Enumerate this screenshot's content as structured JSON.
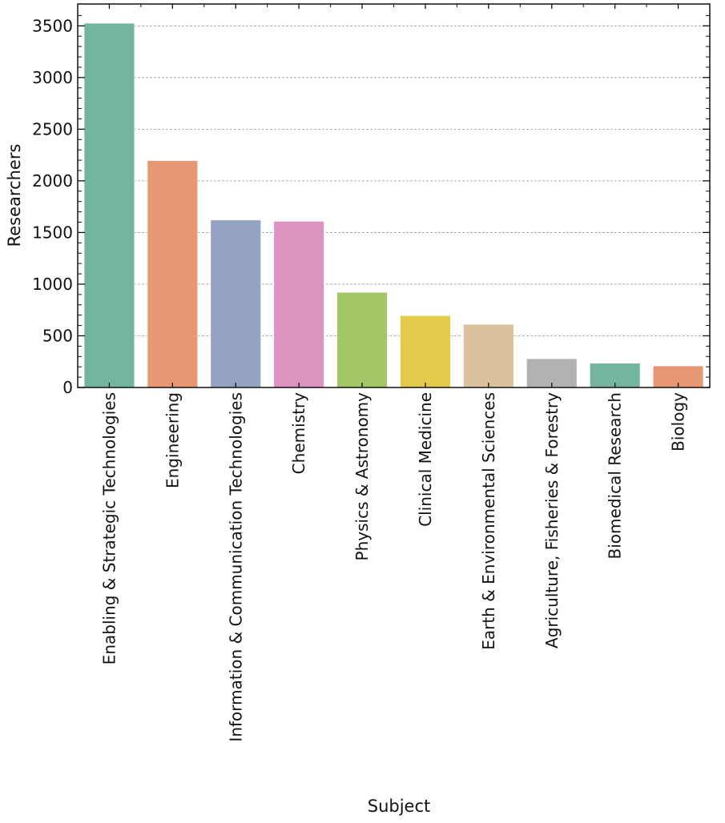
{
  "chart_data": {
    "type": "bar",
    "title": "",
    "xlabel": "Subject",
    "ylabel": "Researchers",
    "ylim": [
      0,
      3700
    ],
    "yticks": [
      0,
      500,
      1000,
      1500,
      2000,
      2500,
      3000,
      3500
    ],
    "grid": "horizontal dashed",
    "categories": [
      "Enabling & Strategic Technologies",
      "Engineering",
      "Information & Communication Technologies",
      "Chemistry",
      "Physics & Astronomy",
      "Clinical Medicine",
      "Earth & Environmental Sciences",
      "Agriculture, Fisheries & Forestry",
      "Biomedical Research",
      "Biology"
    ],
    "values": [
      3527,
      2197,
      1622,
      1610,
      922,
      697,
      613,
      280,
      236,
      210
    ],
    "colors": [
      "#74b59f",
      "#e89774",
      "#94a3c3",
      "#db94c0",
      "#a3c766",
      "#e4ca4b",
      "#dbc29f",
      "#b2b2b2",
      "#74b59f",
      "#e89774"
    ]
  }
}
